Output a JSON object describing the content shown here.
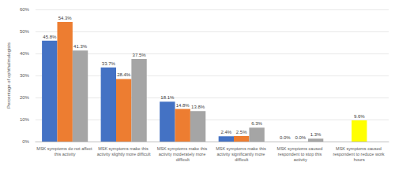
{
  "chart_data": {
    "type": "bar",
    "y_label": "Percentage of ophthalmologists",
    "categories": [
      "MSK symptoms do not affect this activity",
      "MSK symptoms make this activity slightly more difficult",
      "MSK symptoms make this activity moderately more difficult",
      "MSK symptoms make this activity significantly more difficult",
      "MSK symptoms caused respondent to stop this activity",
      "MSK symptoms caused respondent to reduce work hours"
    ],
    "series": [
      {
        "color": "#4472c4",
        "values": [
          45.8,
          33.7,
          18.1,
          2.4,
          0.0,
          null
        ],
        "value_labels": [
          "45.8%",
          "33.7%",
          "18.1%",
          "2.4%",
          "0.0%",
          null
        ]
      },
      {
        "color": "#ed7d31",
        "colors": [
          "#ed7d31",
          "#ed7d31",
          "#ed7d31",
          "#ed7d31",
          "#ed7d31",
          "#ffff00"
        ],
        "values": [
          54.3,
          28.4,
          14.8,
          2.5,
          0.0,
          9.6
        ],
        "value_labels": [
          "54.3%",
          "28.4%",
          "14.8%",
          "2.5%",
          "0.0%",
          "9.6%"
        ]
      },
      {
        "color": "#a5a5a5",
        "values": [
          41.3,
          37.5,
          13.8,
          6.3,
          1.3,
          null
        ],
        "value_labels": [
          "41.3%",
          "37.5%",
          "13.8%",
          "6.3%",
          "1.3%",
          null
        ]
      }
    ],
    "ylim": [
      0,
      60
    ],
    "yticks": [
      {
        "value": 0,
        "label": "0%"
      },
      {
        "value": 10,
        "label": "10%"
      },
      {
        "value": 20,
        "label": "20%"
      },
      {
        "value": 30,
        "label": "30%"
      },
      {
        "value": 40,
        "label": "40%"
      },
      {
        "value": 50,
        "label": "50%"
      },
      {
        "value": 60,
        "label": "60%"
      }
    ],
    "grid": true,
    "data_labels": true
  }
}
